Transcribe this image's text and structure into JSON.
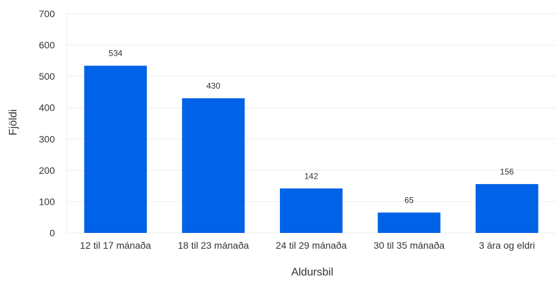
{
  "chart_data": {
    "type": "bar",
    "categories": [
      "12 til 17 mánaða",
      "18 til 23 mánaða",
      "24 til 29 mánaða",
      "30 til 35 mánaða",
      "3 ára og eldri"
    ],
    "values": [
      534,
      430,
      142,
      65,
      156
    ],
    "title": "",
    "xlabel": "Aldursbil",
    "ylabel": "Fjöldi",
    "ylim": [
      0,
      700
    ],
    "yticks": [
      0,
      100,
      200,
      300,
      400,
      500,
      600,
      700
    ],
    "grid": true,
    "legend": "none",
    "colors": {
      "bar": "#0062e6",
      "grid": "#eeeeee",
      "text": "#333333"
    }
  }
}
